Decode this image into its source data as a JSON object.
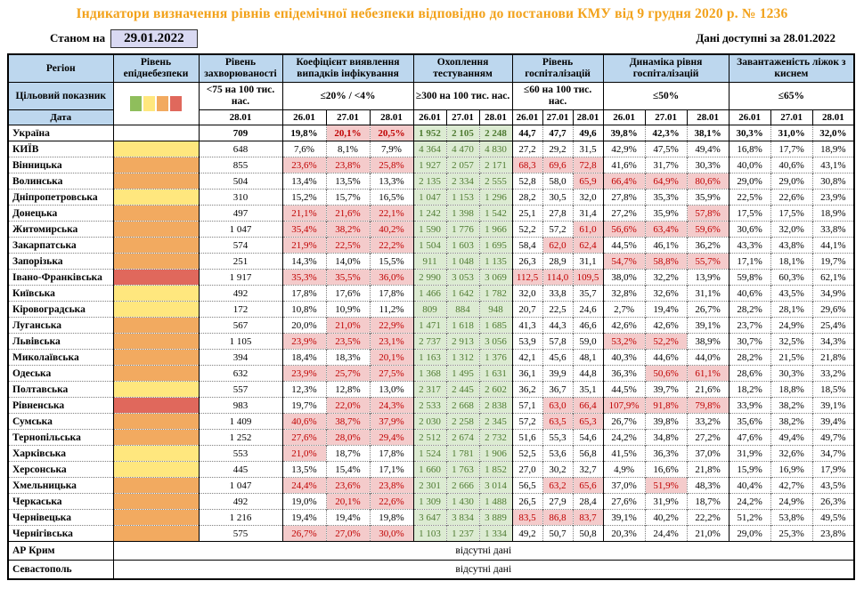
{
  "title": "Індикатори визначення рівнів епідемічної небезпеки відповідно до постанови КМУ від 9 грудня 2020 р. № 1236",
  "as_of_label": "Станом на",
  "as_of_date": "29.01.2022",
  "data_available": "Дані доступні за 28.01.2022",
  "no_data_text": "відсутні дані",
  "colors": {
    "title": "#F2A21B",
    "header_bg": "#BDD7EE",
    "asof_box_bg": "#D9D9F2",
    "flag_bad_bg": "#F4CBCB",
    "flag_bad_text": "#C00000",
    "flag_good_bg": "#DCEBD2",
    "flag_good_text": "#4E7A31",
    "levels": {
      "green": "#8FBE5C",
      "yellow": "#FFE77E",
      "orange": "#F2AA60",
      "red": "#E0685C"
    }
  },
  "legend": {
    "squares": [
      {
        "name": "green",
        "color": "#8FBE5C"
      },
      {
        "name": "yellow",
        "color": "#FFE77E"
      },
      {
        "name": "orange",
        "color": "#F2AA60"
      },
      {
        "name": "red",
        "color": "#E0685C"
      }
    ]
  },
  "header": {
    "region": "Регіон",
    "target": "Цільовий показник",
    "date": "Дата",
    "groups": [
      {
        "label": "Рівень епіднебезпеки",
        "target": "",
        "dates": []
      },
      {
        "label": "Рівень захворюваності",
        "target": "<75 на 100 тис. нас.",
        "dates": [
          "28.01"
        ]
      },
      {
        "label": "Коефіцієнт виявлення випадків інфікування",
        "target": "≤20% / <4%",
        "dates": [
          "26.01",
          "27.01",
          "28.01"
        ]
      },
      {
        "label": "Охоплення тестуванням",
        "target": "≥300 на 100 тис. нас.",
        "dates": [
          "26.01",
          "27.01",
          "28.01"
        ]
      },
      {
        "label": "Рівень госпіталізацій",
        "target": "≤60 на 100 тис. нас.",
        "dates": [
          "26.01",
          "27.01",
          "28.01"
        ]
      },
      {
        "label": "Динаміка рівня госпіталізацій",
        "target": "≤50%",
        "dates": [
          "26.01",
          "27.01",
          "28.01"
        ]
      },
      {
        "label": "Завантаженість ліжок з киснем",
        "target": "≤65%",
        "dates": [
          "26.01",
          "27.01",
          "28.01"
        ]
      }
    ]
  },
  "rows": [
    {
      "region": "Україна",
      "level": "none",
      "bold": true,
      "morbidity": "709",
      "det": [
        "19,8%",
        "20,1%",
        "20,5%"
      ],
      "det_f": [
        0,
        1,
        1
      ],
      "test": [
        "1 952",
        "2 105",
        "2 248"
      ],
      "hosp": [
        "44,7",
        "47,7",
        "49,6"
      ],
      "hosp_f": [
        0,
        0,
        0
      ],
      "dyn": [
        "39,8%",
        "42,3%",
        "38,1%"
      ],
      "dyn_f": [
        0,
        0,
        0
      ],
      "beds": [
        "30,3%",
        "31,0%",
        "32,0%"
      ]
    },
    {
      "region": "КИЇВ",
      "level": "yellow",
      "morbidity": "648",
      "det": [
        "7,6%",
        "8,1%",
        "7,9%"
      ],
      "det_f": [
        0,
        0,
        0
      ],
      "test": [
        "4 364",
        "4 470",
        "4 830"
      ],
      "hosp": [
        "27,2",
        "29,2",
        "31,5"
      ],
      "hosp_f": [
        0,
        0,
        0
      ],
      "dyn": [
        "42,9%",
        "47,5%",
        "49,4%"
      ],
      "dyn_f": [
        0,
        0,
        0
      ],
      "beds": [
        "16,8%",
        "17,7%",
        "18,9%"
      ]
    },
    {
      "region": "Вінницька",
      "level": "orange",
      "morbidity": "855",
      "det": [
        "23,6%",
        "23,8%",
        "25,8%"
      ],
      "det_f": [
        1,
        1,
        1
      ],
      "test": [
        "1 927",
        "2 057",
        "2 171"
      ],
      "hosp": [
        "68,3",
        "69,6",
        "72,8"
      ],
      "hosp_f": [
        1,
        1,
        1
      ],
      "dyn": [
        "41,6%",
        "31,7%",
        "30,3%"
      ],
      "dyn_f": [
        0,
        0,
        0
      ],
      "beds": [
        "40,0%",
        "40,6%",
        "43,1%"
      ]
    },
    {
      "region": "Волинська",
      "level": "orange",
      "morbidity": "504",
      "det": [
        "13,4%",
        "13,5%",
        "13,3%"
      ],
      "det_f": [
        0,
        0,
        0
      ],
      "test": [
        "2 135",
        "2 334",
        "2 555"
      ],
      "hosp": [
        "52,8",
        "58,0",
        "65,9"
      ],
      "hosp_f": [
        0,
        0,
        1
      ],
      "dyn": [
        "66,4%",
        "64,9%",
        "80,6%"
      ],
      "dyn_f": [
        1,
        1,
        1
      ],
      "beds": [
        "29,0%",
        "29,0%",
        "30,8%"
      ]
    },
    {
      "region": "Дніпропетровська",
      "level": "yellow",
      "morbidity": "310",
      "det": [
        "15,2%",
        "15,7%",
        "16,5%"
      ],
      "det_f": [
        0,
        0,
        0
      ],
      "test": [
        "1 047",
        "1 153",
        "1 296"
      ],
      "hosp": [
        "28,2",
        "30,5",
        "32,0"
      ],
      "hosp_f": [
        0,
        0,
        0
      ],
      "dyn": [
        "27,8%",
        "35,3%",
        "35,9%"
      ],
      "dyn_f": [
        0,
        0,
        0
      ],
      "beds": [
        "22,5%",
        "22,6%",
        "23,9%"
      ]
    },
    {
      "region": "Донецька",
      "level": "orange",
      "morbidity": "497",
      "det": [
        "21,1%",
        "21,6%",
        "22,1%"
      ],
      "det_f": [
        1,
        1,
        1
      ],
      "test": [
        "1 242",
        "1 398",
        "1 542"
      ],
      "hosp": [
        "25,1",
        "27,8",
        "31,4"
      ],
      "hosp_f": [
        0,
        0,
        0
      ],
      "dyn": [
        "27,2%",
        "35,9%",
        "57,8%"
      ],
      "dyn_f": [
        0,
        0,
        1
      ],
      "beds": [
        "17,5%",
        "17,5%",
        "18,9%"
      ]
    },
    {
      "region": "Житомирська",
      "level": "orange",
      "morbidity": "1 047",
      "det": [
        "35,4%",
        "38,2%",
        "40,2%"
      ],
      "det_f": [
        1,
        1,
        1
      ],
      "test": [
        "1 590",
        "1 776",
        "1 966"
      ],
      "hosp": [
        "52,2",
        "57,2",
        "61,0"
      ],
      "hosp_f": [
        0,
        0,
        1
      ],
      "dyn": [
        "56,6%",
        "63,4%",
        "59,6%"
      ],
      "dyn_f": [
        1,
        1,
        1
      ],
      "beds": [
        "30,6%",
        "32,0%",
        "33,8%"
      ]
    },
    {
      "region": "Закарпатська",
      "level": "orange",
      "morbidity": "574",
      "det": [
        "21,9%",
        "22,5%",
        "22,2%"
      ],
      "det_f": [
        1,
        1,
        1
      ],
      "test": [
        "1 504",
        "1 603",
        "1 695"
      ],
      "hosp": [
        "58,4",
        "62,0",
        "62,4"
      ],
      "hosp_f": [
        0,
        1,
        1
      ],
      "dyn": [
        "44,5%",
        "46,1%",
        "36,2%"
      ],
      "dyn_f": [
        0,
        0,
        0
      ],
      "beds": [
        "43,3%",
        "43,8%",
        "44,1%"
      ]
    },
    {
      "region": "Запорізька",
      "level": "orange",
      "morbidity": "251",
      "det": [
        "14,3%",
        "14,0%",
        "15,5%"
      ],
      "det_f": [
        0,
        0,
        0
      ],
      "test": [
        "911",
        "1 048",
        "1 135"
      ],
      "hosp": [
        "26,3",
        "28,9",
        "31,1"
      ],
      "hosp_f": [
        0,
        0,
        0
      ],
      "dyn": [
        "54,7%",
        "58,8%",
        "55,7%"
      ],
      "dyn_f": [
        1,
        1,
        1
      ],
      "beds": [
        "17,1%",
        "18,1%",
        "19,7%"
      ]
    },
    {
      "region": "Івано-Франківська",
      "level": "red",
      "morbidity": "1 917",
      "det": [
        "35,3%",
        "35,5%",
        "36,0%"
      ],
      "det_f": [
        1,
        1,
        1
      ],
      "test": [
        "2 990",
        "3 053",
        "3 069"
      ],
      "hosp": [
        "112,5",
        "114,0",
        "109,5"
      ],
      "hosp_f": [
        1,
        1,
        1
      ],
      "dyn": [
        "38,0%",
        "32,2%",
        "13,9%"
      ],
      "dyn_f": [
        0,
        0,
        0
      ],
      "beds": [
        "59,8%",
        "60,3%",
        "62,1%"
      ]
    },
    {
      "region": "Київська",
      "level": "yellow",
      "morbidity": "492",
      "det": [
        "17,8%",
        "17,6%",
        "17,8%"
      ],
      "det_f": [
        0,
        0,
        0
      ],
      "test": [
        "1 466",
        "1 642",
        "1 782"
      ],
      "hosp": [
        "32,0",
        "33,8",
        "35,7"
      ],
      "hosp_f": [
        0,
        0,
        0
      ],
      "dyn": [
        "32,8%",
        "32,6%",
        "31,1%"
      ],
      "dyn_f": [
        0,
        0,
        0
      ],
      "beds": [
        "40,6%",
        "43,5%",
        "34,9%"
      ]
    },
    {
      "region": "Кіровоградська",
      "level": "yellow",
      "morbidity": "172",
      "det": [
        "10,8%",
        "10,9%",
        "11,2%"
      ],
      "det_f": [
        0,
        0,
        0
      ],
      "test": [
        "809",
        "884",
        "948"
      ],
      "hosp": [
        "20,7",
        "22,5",
        "24,6"
      ],
      "hosp_f": [
        0,
        0,
        0
      ],
      "dyn": [
        "2,7%",
        "19,4%",
        "26,7%"
      ],
      "dyn_f": [
        0,
        0,
        0
      ],
      "beds": [
        "28,2%",
        "28,1%",
        "29,6%"
      ]
    },
    {
      "region": "Луганська",
      "level": "orange",
      "morbidity": "567",
      "det": [
        "20,0%",
        "21,0%",
        "22,9%"
      ],
      "det_f": [
        0,
        1,
        1
      ],
      "test": [
        "1 471",
        "1 618",
        "1 685"
      ],
      "hosp": [
        "41,3",
        "44,3",
        "46,6"
      ],
      "hosp_f": [
        0,
        0,
        0
      ],
      "dyn": [
        "42,6%",
        "42,6%",
        "39,1%"
      ],
      "dyn_f": [
        0,
        0,
        0
      ],
      "beds": [
        "23,7%",
        "24,9%",
        "25,4%"
      ]
    },
    {
      "region": "Львівська",
      "level": "orange",
      "morbidity": "1 105",
      "det": [
        "23,9%",
        "23,5%",
        "23,1%"
      ],
      "det_f": [
        1,
        1,
        1
      ],
      "test": [
        "2 737",
        "2 913",
        "3 056"
      ],
      "hosp": [
        "53,9",
        "57,8",
        "59,0"
      ],
      "hosp_f": [
        0,
        0,
        0
      ],
      "dyn": [
        "53,2%",
        "52,2%",
        "38,9%"
      ],
      "dyn_f": [
        1,
        1,
        0
      ],
      "beds": [
        "30,7%",
        "32,5%",
        "34,3%"
      ]
    },
    {
      "region": "Миколаївська",
      "level": "orange",
      "morbidity": "394",
      "det": [
        "18,4%",
        "18,3%",
        "20,1%"
      ],
      "det_f": [
        0,
        0,
        1
      ],
      "test": [
        "1 163",
        "1 312",
        "1 376"
      ],
      "hosp": [
        "42,1",
        "45,6",
        "48,1"
      ],
      "hosp_f": [
        0,
        0,
        0
      ],
      "dyn": [
        "40,3%",
        "44,6%",
        "44,0%"
      ],
      "dyn_f": [
        0,
        0,
        0
      ],
      "beds": [
        "28,2%",
        "21,5%",
        "21,8%"
      ]
    },
    {
      "region": "Одеська",
      "level": "orange",
      "morbidity": "632",
      "det": [
        "23,9%",
        "25,7%",
        "27,5%"
      ],
      "det_f": [
        1,
        1,
        1
      ],
      "test": [
        "1 368",
        "1 495",
        "1 631"
      ],
      "hosp": [
        "36,1",
        "39,9",
        "44,8"
      ],
      "hosp_f": [
        0,
        0,
        0
      ],
      "dyn": [
        "36,3%",
        "50,6%",
        "61,1%"
      ],
      "dyn_f": [
        0,
        1,
        1
      ],
      "beds": [
        "28,6%",
        "30,3%",
        "33,2%"
      ]
    },
    {
      "region": "Полтавська",
      "level": "yellow",
      "morbidity": "557",
      "det": [
        "12,3%",
        "12,8%",
        "13,0%"
      ],
      "det_f": [
        0,
        0,
        0
      ],
      "test": [
        "2 317",
        "2 445",
        "2 602"
      ],
      "hosp": [
        "36,2",
        "36,7",
        "35,1"
      ],
      "hosp_f": [
        0,
        0,
        0
      ],
      "dyn": [
        "44,5%",
        "39,7%",
        "21,6%"
      ],
      "dyn_f": [
        0,
        0,
        0
      ],
      "beds": [
        "18,2%",
        "18,8%",
        "18,5%"
      ]
    },
    {
      "region": "Рівненська",
      "level": "red",
      "morbidity": "983",
      "det": [
        "19,7%",
        "22,0%",
        "24,3%"
      ],
      "det_f": [
        0,
        1,
        1
      ],
      "test": [
        "2 533",
        "2 668",
        "2 838"
      ],
      "hosp": [
        "57,1",
        "63,0",
        "66,4"
      ],
      "hosp_f": [
        0,
        1,
        1
      ],
      "dyn": [
        "107,9%",
        "91,8%",
        "79,8%"
      ],
      "dyn_f": [
        1,
        1,
        1
      ],
      "beds": [
        "33,9%",
        "38,2%",
        "39,1%"
      ]
    },
    {
      "region": "Сумська",
      "level": "orange",
      "morbidity": "1 409",
      "det": [
        "40,6%",
        "38,7%",
        "37,9%"
      ],
      "det_f": [
        1,
        1,
        1
      ],
      "test": [
        "2 030",
        "2 258",
        "2 345"
      ],
      "hosp": [
        "57,2",
        "63,5",
        "65,3"
      ],
      "hosp_f": [
        0,
        1,
        1
      ],
      "dyn": [
        "26,7%",
        "39,8%",
        "33,2%"
      ],
      "dyn_f": [
        0,
        0,
        0
      ],
      "beds": [
        "35,6%",
        "38,2%",
        "39,4%"
      ]
    },
    {
      "region": "Тернопільська",
      "level": "orange",
      "morbidity": "1 252",
      "det": [
        "27,6%",
        "28,0%",
        "29,4%"
      ],
      "det_f": [
        1,
        1,
        1
      ],
      "test": [
        "2 512",
        "2 674",
        "2 732"
      ],
      "hosp": [
        "51,6",
        "55,3",
        "54,6"
      ],
      "hosp_f": [
        0,
        0,
        0
      ],
      "dyn": [
        "24,2%",
        "34,8%",
        "27,2%"
      ],
      "dyn_f": [
        0,
        0,
        0
      ],
      "beds": [
        "47,6%",
        "49,4%",
        "49,7%"
      ]
    },
    {
      "region": "Харківська",
      "level": "yellow",
      "morbidity": "553",
      "det": [
        "21,0%",
        "18,7%",
        "17,8%"
      ],
      "det_f": [
        1,
        0,
        0
      ],
      "test": [
        "1 524",
        "1 781",
        "1 906"
      ],
      "hosp": [
        "52,5",
        "53,6",
        "56,8"
      ],
      "hosp_f": [
        0,
        0,
        0
      ],
      "dyn": [
        "41,5%",
        "36,3%",
        "37,0%"
      ],
      "dyn_f": [
        0,
        0,
        0
      ],
      "beds": [
        "31,9%",
        "32,6%",
        "34,7%"
      ]
    },
    {
      "region": "Херсонська",
      "level": "yellow",
      "morbidity": "445",
      "det": [
        "13,5%",
        "15,4%",
        "17,1%"
      ],
      "det_f": [
        0,
        0,
        0
      ],
      "test": [
        "1 660",
        "1 763",
        "1 852"
      ],
      "hosp": [
        "27,0",
        "30,2",
        "32,7"
      ],
      "hosp_f": [
        0,
        0,
        0
      ],
      "dyn": [
        "4,9%",
        "16,6%",
        "21,8%"
      ],
      "dyn_f": [
        0,
        0,
        0
      ],
      "beds": [
        "15,9%",
        "16,9%",
        "17,9%"
      ]
    },
    {
      "region": "Хмельницька",
      "level": "orange",
      "morbidity": "1 047",
      "det": [
        "24,4%",
        "23,6%",
        "23,8%"
      ],
      "det_f": [
        1,
        1,
        1
      ],
      "test": [
        "2 301",
        "2 666",
        "3 014"
      ],
      "hosp": [
        "56,5",
        "63,2",
        "65,6"
      ],
      "hosp_f": [
        0,
        1,
        1
      ],
      "dyn": [
        "37,0%",
        "51,9%",
        "48,3%"
      ],
      "dyn_f": [
        0,
        1,
        0
      ],
      "beds": [
        "40,4%",
        "42,7%",
        "43,5%"
      ]
    },
    {
      "region": "Черкаська",
      "level": "orange",
      "morbidity": "492",
      "det": [
        "19,0%",
        "20,1%",
        "22,6%"
      ],
      "det_f": [
        0,
        1,
        1
      ],
      "test": [
        "1 309",
        "1 430",
        "1 488"
      ],
      "hosp": [
        "26,5",
        "27,9",
        "28,4"
      ],
      "hosp_f": [
        0,
        0,
        0
      ],
      "dyn": [
        "27,6%",
        "31,9%",
        "18,7%"
      ],
      "dyn_f": [
        0,
        0,
        0
      ],
      "beds": [
        "24,2%",
        "24,9%",
        "26,3%"
      ]
    },
    {
      "region": "Чернівецька",
      "level": "orange",
      "morbidity": "1 216",
      "det": [
        "19,4%",
        "19,4%",
        "19,8%"
      ],
      "det_f": [
        0,
        0,
        0
      ],
      "test": [
        "3 647",
        "3 834",
        "3 889"
      ],
      "hosp": [
        "83,5",
        "86,8",
        "83,7"
      ],
      "hosp_f": [
        1,
        1,
        1
      ],
      "dyn": [
        "39,1%",
        "40,2%",
        "22,2%"
      ],
      "dyn_f": [
        0,
        0,
        0
      ],
      "beds": [
        "51,2%",
        "53,8%",
        "49,5%"
      ]
    },
    {
      "region": "Чернігівська",
      "level": "orange",
      "morbidity": "575",
      "det": [
        "26,7%",
        "27,0%",
        "30,0%"
      ],
      "det_f": [
        1,
        1,
        1
      ],
      "test": [
        "1 103",
        "1 237",
        "1 334"
      ],
      "hosp": [
        "49,2",
        "50,7",
        "50,8"
      ],
      "hosp_f": [
        0,
        0,
        0
      ],
      "dyn": [
        "20,3%",
        "24,4%",
        "21,0%"
      ],
      "dyn_f": [
        0,
        0,
        0
      ],
      "beds": [
        "29,0%",
        "25,3%",
        "23,8%"
      ]
    }
  ],
  "no_data_rows": [
    "АР Крим",
    "Севастополь"
  ]
}
